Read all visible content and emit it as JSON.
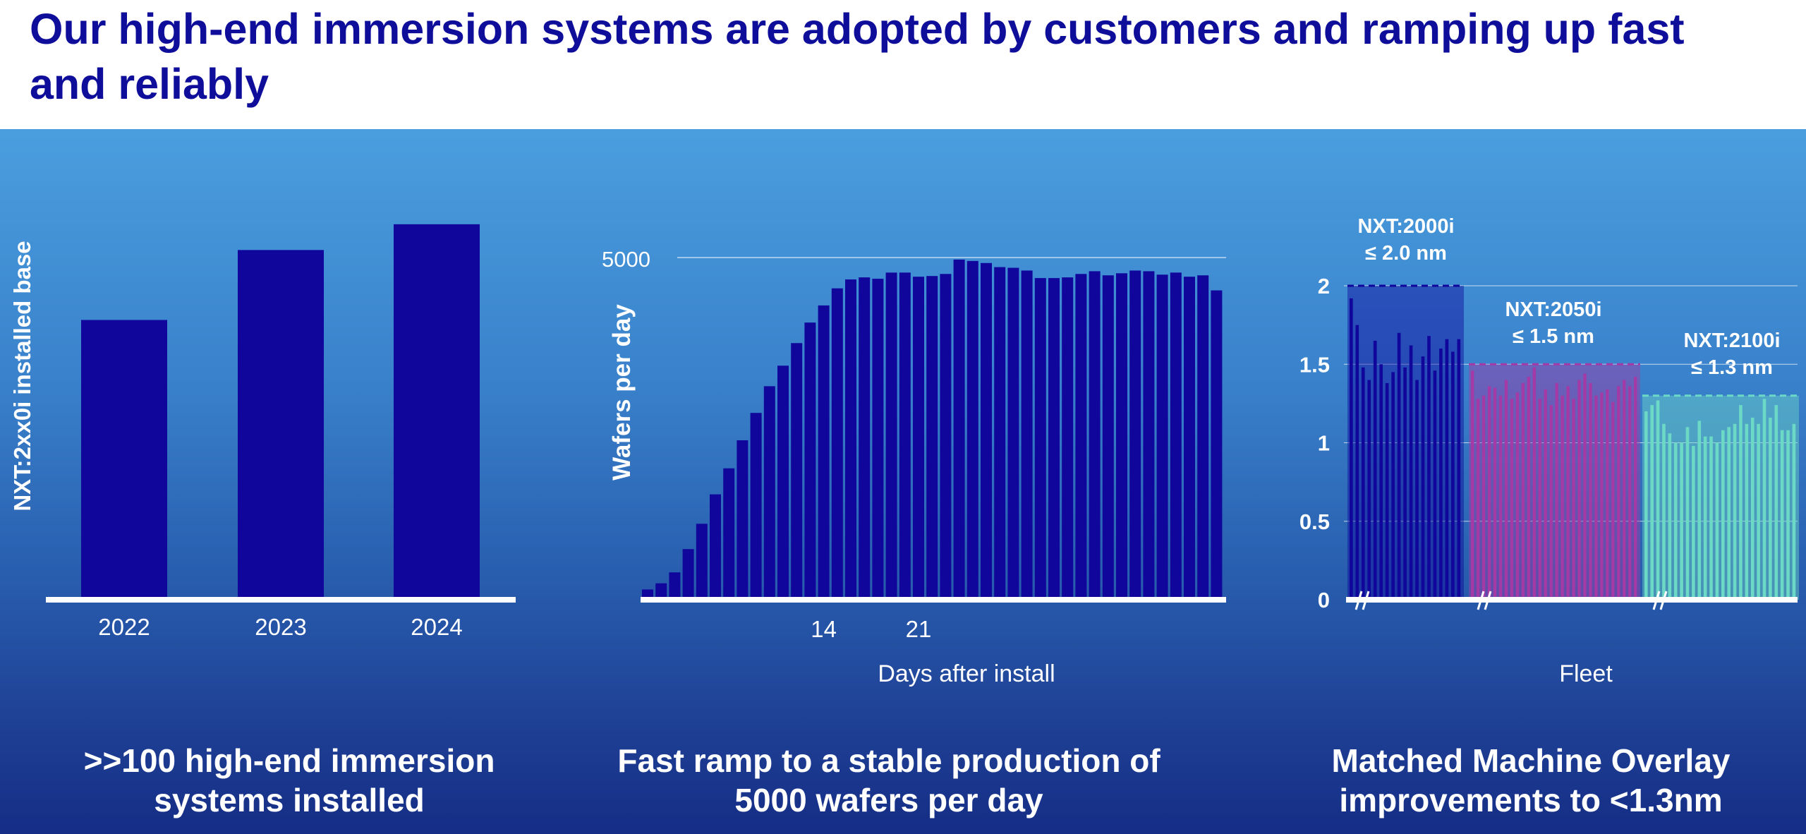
{
  "header": {
    "title": "Our high-end immersion systems are adopted by customers and ramping up fast and reliably"
  },
  "captions": [
    {
      "line1": ">>100 high-end immersion",
      "line2": "systems installed"
    },
    {
      "line1": "Fast ramp to a stable production of",
      "line2": "5000 wafers per day"
    },
    {
      "line1": "Matched Machine Overlay",
      "line2": "improvements to <1.3nm"
    }
  ],
  "colors": {
    "bar_dark": "#10069c",
    "magenta": "#a43aa6",
    "teal": "#6cd8c6",
    "white": "#ffffff"
  },
  "chart_data": [
    {
      "type": "bar",
      "ylabel": "NXT:2xx0i installed base",
      "categories": [
        "2022",
        "2023",
        "2024"
      ],
      "values": [
        76,
        95,
        102
      ],
      "ylim": [
        0,
        115
      ],
      "grid": false
    },
    {
      "type": "bar",
      "ylabel": "Wafers per day",
      "xlabel": "Days after install",
      "ytick_label": "5000",
      "ytick_value": 5000,
      "xtick_labels": [
        "14",
        "21"
      ],
      "xtick_values": [
        14,
        21
      ],
      "ylim": [
        0,
        5000
      ],
      "x": [
        1,
        2,
        3,
        4,
        5,
        6,
        7,
        8,
        9,
        10,
        11,
        12,
        13,
        14,
        15,
        16,
        17,
        18,
        19,
        20,
        21,
        22,
        23,
        24,
        25,
        26,
        27,
        28,
        29,
        30,
        31,
        32,
        33,
        34,
        35,
        36,
        37,
        38,
        39,
        40,
        41,
        42,
        43
      ],
      "values": [
        150,
        240,
        400,
        740,
        1110,
        1540,
        1920,
        2330,
        2730,
        3120,
        3420,
        3750,
        4050,
        4300,
        4550,
        4680,
        4710,
        4690,
        4780,
        4780,
        4720,
        4730,
        4760,
        4970,
        4950,
        4920,
        4860,
        4850,
        4810,
        4700,
        4700,
        4710,
        4760,
        4800,
        4740,
        4770,
        4810,
        4800,
        4750,
        4780,
        4720,
        4740,
        4520
      ],
      "grid": true
    },
    {
      "type": "bar",
      "xlabel": "Fleet",
      "yticks": [
        "0",
        "0.5",
        "1",
        "1.5",
        "2"
      ],
      "ylim": [
        0,
        2.2
      ],
      "series": [
        {
          "name": "NXT:2000i",
          "spec_label": "≤ 2.0 nm",
          "spec": 2.0,
          "color": "#10069c",
          "values": [
            1.92,
            1.75,
            1.48,
            1.4,
            1.65,
            1.5,
            1.38,
            1.45,
            1.7,
            1.48,
            1.62,
            1.4,
            1.55,
            1.68,
            1.46,
            1.6,
            1.66,
            1.58,
            1.66
          ]
        },
        {
          "name": "NXT:2050i",
          "spec_label": "≤ 1.5 nm",
          "spec": 1.5,
          "color": "#a43aa6",
          "values": [
            1.46,
            1.28,
            1.3,
            1.36,
            1.35,
            1.3,
            1.4,
            1.28,
            1.32,
            1.38,
            1.42,
            1.48,
            1.28,
            1.34,
            1.24,
            1.38,
            1.3,
            1.36,
            1.28,
            1.4,
            1.44,
            1.38,
            1.3,
            1.32,
            1.34,
            1.26,
            1.36,
            1.4,
            1.36,
            1.42
          ]
        },
        {
          "name": "NXT:2100i",
          "spec_label": "≤ 1.3 nm",
          "spec": 1.3,
          "color": "#6cd8c6",
          "values": [
            1.2,
            1.24,
            1.27,
            1.12,
            1.06,
            1.0,
            1.0,
            1.1,
            0.98,
            1.14,
            1.04,
            1.04,
            1.0,
            1.08,
            1.1,
            1.12,
            1.24,
            1.12,
            1.16,
            1.12,
            1.28,
            1.16,
            1.24,
            1.08,
            1.08,
            1.12
          ]
        }
      ],
      "grid": true
    }
  ]
}
